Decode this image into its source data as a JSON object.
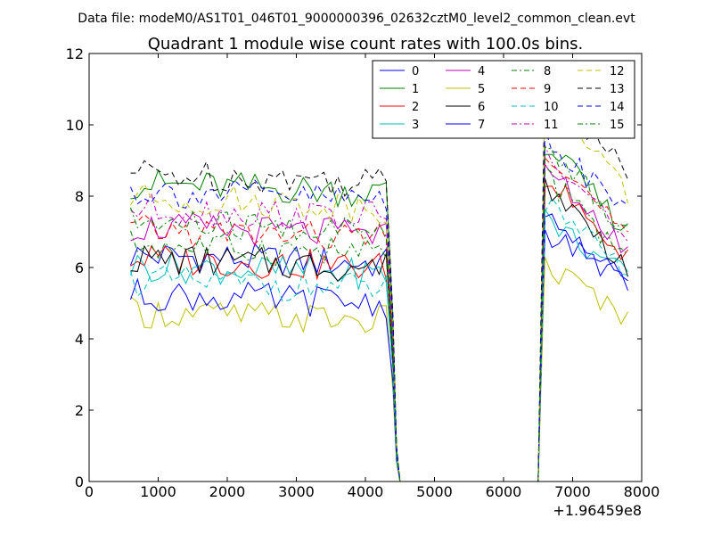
{
  "header": {
    "data_file": "Data file: modeM0/AS1T01_046T01_9000000396_02632cztM0_level2_common_clean.evt"
  },
  "chart_data": {
    "type": "line",
    "title": "Quadrant 1 module wise count rates with 100.0s bins.",
    "xlabel": "",
    "ylabel": "",
    "x_offset_label": "+1.96459e8",
    "xlim": [
      0,
      8000
    ],
    "ylim": [
      0,
      12
    ],
    "xticks": [
      "0",
      "1000",
      "2000",
      "3000",
      "4000",
      "5000",
      "6000",
      "7000",
      "8000"
    ],
    "yticks": [
      "0",
      "2",
      "4",
      "6",
      "8",
      "10",
      "12"
    ],
    "legend_position": "top-right",
    "x_seg1_start": 600,
    "x_seg1_end": 4300,
    "x_step": 100,
    "drop_x": [
      4400,
      4450,
      4500
    ],
    "zero_range": [
      4500,
      6500
    ],
    "x_seg2_start": 6600,
    "x_seg2_end": 7800,
    "series": [
      {
        "name": "0",
        "color": "#0000ff",
        "dash": "solid",
        "base": 6.1,
        "peak": 7.0,
        "end": 5.6
      },
      {
        "name": "1",
        "color": "#008000",
        "dash": "solid",
        "base": 8.1,
        "peak": 9.5,
        "end": 7.0
      },
      {
        "name": "2",
        "color": "#ff0000",
        "dash": "solid",
        "base": 6.0,
        "peak": 8.6,
        "end": 6.2
      },
      {
        "name": "3",
        "color": "#00bfbf",
        "dash": "solid",
        "base": 5.8,
        "peak": 7.4,
        "end": 5.7
      },
      {
        "name": "4",
        "color": "#bf00bf",
        "dash": "solid",
        "base": 6.9,
        "peak": 8.8,
        "end": 6.5
      },
      {
        "name": "5",
        "color": "#bfbf00",
        "dash": "solid",
        "base": 4.5,
        "peak": 6.1,
        "end": 4.6
      },
      {
        "name": "6",
        "color": "#000000",
        "dash": "solid",
        "base": 6.0,
        "peak": 8.4,
        "end": 6.0
      },
      {
        "name": "7",
        "color": "#0000ff",
        "dash": "solid",
        "base": 5.0,
        "peak": 7.6,
        "end": 5.4
      },
      {
        "name": "8",
        "color": "#008000",
        "dash": "dashdot",
        "base": 6.4,
        "peak": 8.6,
        "end": 6.2
      },
      {
        "name": "9",
        "color": "#ff0000",
        "dash": "dashed",
        "base": 6.8,
        "peak": 9.4,
        "end": 6.8
      },
      {
        "name": "10",
        "color": "#00bfbf",
        "dash": "dashed",
        "base": 5.4,
        "peak": 7.8,
        "end": 5.8
      },
      {
        "name": "11",
        "color": "#bf00bf",
        "dash": "dashdot",
        "base": 7.4,
        "peak": 9.4,
        "end": 6.8
      },
      {
        "name": "12",
        "color": "#bfbf00",
        "dash": "dashed",
        "base": 7.7,
        "peak": 10.8,
        "end": 8.0
      },
      {
        "name": "13",
        "color": "#000000",
        "dash": "dashed",
        "base": 8.4,
        "peak": 11.2,
        "end": 8.6
      },
      {
        "name": "14",
        "color": "#0000ff",
        "dash": "dashed",
        "base": 7.9,
        "peak": 9.6,
        "end": 7.5
      },
      {
        "name": "15",
        "color": "#008000",
        "dash": "dashdot",
        "base": 7.0,
        "peak": 9.5,
        "end": 7.0
      }
    ]
  }
}
